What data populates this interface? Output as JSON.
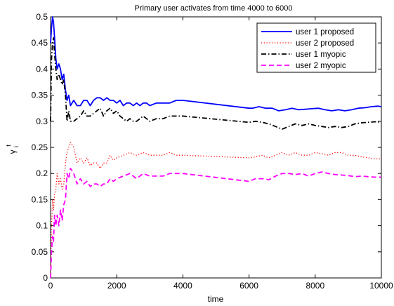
{
  "chart_data": {
    "type": "line",
    "title": "Primary user activates from time 4000 to 6000",
    "xlabel": "time",
    "ylabel": "γ",
    "ylabel_superscript": "t",
    "ylabel_subscript": "i",
    "xlim": [
      0,
      10000
    ],
    "ylim": [
      0,
      0.5
    ],
    "x_ticks": [
      0,
      2000,
      4000,
      6000,
      8000,
      10000
    ],
    "y_ticks": [
      0,
      0.05,
      0.1,
      0.15,
      0.2,
      0.25,
      0.3,
      0.35,
      0.4,
      0.45,
      0.5
    ],
    "grid": false,
    "legend_position": "top-right",
    "series": [
      {
        "name": "user 1 proposed",
        "color": "#0000ff",
        "style": "solid",
        "x": [
          0,
          30,
          60,
          90,
          120,
          160,
          200,
          250,
          300,
          350,
          400,
          450,
          500,
          550,
          600,
          700,
          800,
          900,
          1000,
          1100,
          1200,
          1300,
          1400,
          1500,
          1600,
          1700,
          1800,
          1900,
          2000,
          2100,
          2200,
          2300,
          2400,
          2500,
          2600,
          2700,
          2800,
          2900,
          3000,
          3200,
          3400,
          3600,
          3800,
          3900,
          4000,
          6000,
          6100,
          6300,
          6500,
          6700,
          6900,
          7100,
          7300,
          7500,
          7700,
          7900,
          8100,
          8300,
          8500,
          8700,
          8900,
          9100,
          9300,
          9500,
          9700,
          9900,
          10000
        ],
        "y": [
          0.45,
          0.48,
          0.5,
          0.49,
          0.46,
          0.42,
          0.4,
          0.41,
          0.4,
          0.38,
          0.39,
          0.36,
          0.34,
          0.35,
          0.33,
          0.34,
          0.33,
          0.33,
          0.34,
          0.34,
          0.33,
          0.34,
          0.345,
          0.345,
          0.34,
          0.345,
          0.34,
          0.34,
          0.335,
          0.34,
          0.33,
          0.335,
          0.335,
          0.33,
          0.335,
          0.33,
          0.335,
          0.335,
          0.33,
          0.335,
          0.335,
          0.335,
          0.34,
          0.34,
          0.34,
          0.325,
          0.325,
          0.328,
          0.325,
          0.325,
          0.32,
          0.322,
          0.325,
          0.322,
          0.323,
          0.324,
          0.325,
          0.322,
          0.32,
          0.322,
          0.32,
          0.322,
          0.325,
          0.326,
          0.328,
          0.329,
          0.328
        ]
      },
      {
        "name": "user 2 proposed",
        "color": "#ff0000",
        "style": "dotted",
        "x": [
          0,
          30,
          60,
          90,
          120,
          160,
          200,
          250,
          300,
          350,
          400,
          450,
          500,
          550,
          600,
          700,
          800,
          900,
          1000,
          1100,
          1200,
          1300,
          1400,
          1500,
          1600,
          1700,
          1800,
          1900,
          2000,
          2200,
          2400,
          2600,
          2800,
          3000,
          3200,
          3400,
          3600,
          3800,
          4000,
          6000,
          6200,
          6400,
          6600,
          6800,
          7000,
          7200,
          7400,
          7600,
          7800,
          8000,
          8200,
          8400,
          8600,
          8800,
          9000,
          9200,
          9400,
          9600,
          9800,
          10000
        ],
        "y": [
          0.0,
          0.1,
          0.15,
          0.13,
          0.16,
          0.17,
          0.2,
          0.18,
          0.19,
          0.17,
          0.18,
          0.22,
          0.24,
          0.25,
          0.26,
          0.25,
          0.22,
          0.23,
          0.22,
          0.23,
          0.215,
          0.22,
          0.22,
          0.21,
          0.22,
          0.22,
          0.235,
          0.225,
          0.23,
          0.235,
          0.24,
          0.235,
          0.24,
          0.235,
          0.235,
          0.235,
          0.24,
          0.235,
          0.235,
          0.23,
          0.232,
          0.235,
          0.23,
          0.235,
          0.24,
          0.235,
          0.24,
          0.235,
          0.235,
          0.24,
          0.238,
          0.235,
          0.24,
          0.24,
          0.235,
          0.235,
          0.232,
          0.23,
          0.228,
          0.228
        ]
      },
      {
        "name": "user 1 myopic",
        "color": "#000000",
        "style": "dashdot",
        "x": [
          0,
          30,
          60,
          90,
          120,
          160,
          200,
          250,
          300,
          350,
          400,
          450,
          500,
          550,
          600,
          700,
          800,
          900,
          1000,
          1100,
          1200,
          1300,
          1400,
          1500,
          1600,
          1700,
          1800,
          1900,
          2000,
          2100,
          2200,
          2300,
          2400,
          2500,
          2600,
          2700,
          2800,
          2900,
          3000,
          3200,
          3400,
          3600,
          3800,
          3900,
          4000,
          6000,
          6200,
          6400,
          6600,
          6800,
          7000,
          7200,
          7400,
          7600,
          7800,
          8000,
          8200,
          8400,
          8600,
          8800,
          9000,
          9200,
          9400,
          9600,
          9800,
          10000
        ],
        "y": [
          0.3,
          0.42,
          0.45,
          0.46,
          0.43,
          0.4,
          0.38,
          0.39,
          0.38,
          0.37,
          0.38,
          0.35,
          0.3,
          0.32,
          0.3,
          0.3,
          0.305,
          0.31,
          0.32,
          0.31,
          0.31,
          0.315,
          0.32,
          0.325,
          0.31,
          0.32,
          0.325,
          0.315,
          0.32,
          0.31,
          0.305,
          0.3,
          0.305,
          0.3,
          0.3,
          0.305,
          0.31,
          0.305,
          0.3,
          0.305,
          0.305,
          0.31,
          0.31,
          0.31,
          0.31,
          0.298,
          0.3,
          0.298,
          0.295,
          0.29,
          0.285,
          0.29,
          0.295,
          0.292,
          0.295,
          0.292,
          0.29,
          0.288,
          0.29,
          0.288,
          0.29,
          0.295,
          0.297,
          0.298,
          0.299,
          0.298
        ]
      },
      {
        "name": "user 2 myopic",
        "color": "#ff00ff",
        "style": "dashed",
        "x": [
          0,
          30,
          60,
          90,
          120,
          160,
          200,
          250,
          300,
          350,
          400,
          450,
          500,
          550,
          600,
          700,
          800,
          900,
          1000,
          1100,
          1200,
          1300,
          1400,
          1500,
          1600,
          1700,
          1800,
          1900,
          2000,
          2200,
          2400,
          2600,
          2800,
          3000,
          3200,
          3400,
          3600,
          3800,
          4000,
          6000,
          6200,
          6400,
          6600,
          6800,
          7000,
          7200,
          7400,
          7600,
          7800,
          8000,
          8200,
          8400,
          8600,
          8800,
          9000,
          9200,
          9400,
          9600,
          9800,
          10000
        ],
        "y": [
          0.0,
          0.05,
          0.08,
          0.07,
          0.12,
          0.1,
          0.12,
          0.1,
          0.13,
          0.11,
          0.14,
          0.15,
          0.2,
          0.19,
          0.21,
          0.2,
          0.18,
          0.19,
          0.18,
          0.185,
          0.175,
          0.18,
          0.18,
          0.175,
          0.18,
          0.18,
          0.19,
          0.185,
          0.19,
          0.195,
          0.2,
          0.19,
          0.2,
          0.195,
          0.195,
          0.195,
          0.2,
          0.2,
          0.2,
          0.185,
          0.19,
          0.19,
          0.188,
          0.195,
          0.2,
          0.2,
          0.198,
          0.2,
          0.195,
          0.2,
          0.203,
          0.2,
          0.198,
          0.197,
          0.196,
          0.194,
          0.195,
          0.194,
          0.193,
          0.193
        ]
      }
    ]
  }
}
